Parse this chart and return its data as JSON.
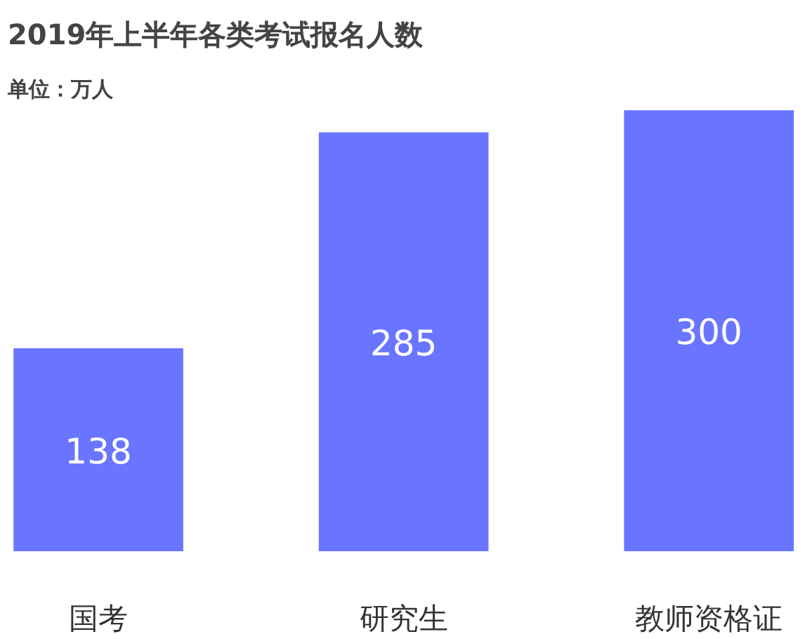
{
  "chart_data": {
    "type": "bar",
    "title": "2019年上半年各类考试报名人数",
    "subtitle": "单位：万人",
    "categories": [
      "国考",
      "研究生",
      "教师资格证"
    ],
    "values": [
      138,
      285,
      300
    ],
    "color": "#6a75ff",
    "data_labels": true
  }
}
